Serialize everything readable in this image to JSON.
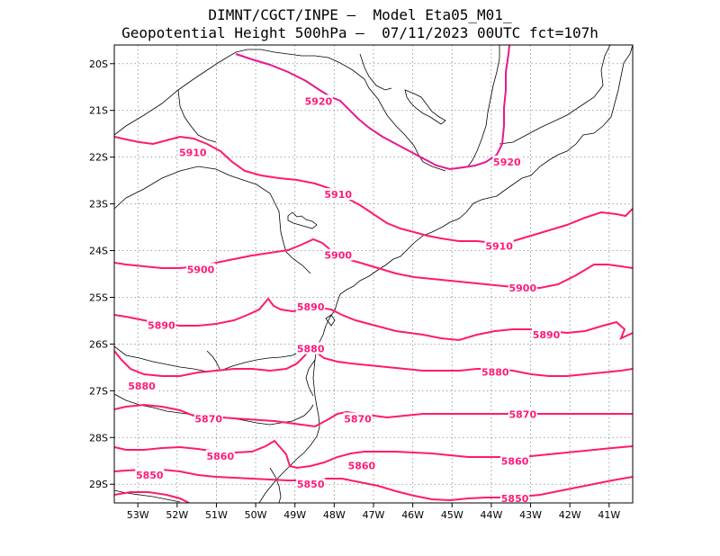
{
  "title_line1": "DIMNT/CGCT/INPE –  Model Eta05_M01_",
  "title_line2": "Geopotential Height 500hPa –  07/11/2023 00UTC fct=107h",
  "colors": {
    "contour": "#ff1a6e",
    "contour_alt": "#e8178f",
    "coast": "#000000",
    "grid": "#888888"
  },
  "axes": {
    "lat_labels": [
      "20S",
      "21S",
      "22S",
      "23S",
      "24S",
      "25S",
      "26S",
      "27S",
      "28S",
      "29S"
    ],
    "lat_values": [
      -20,
      -21,
      -22,
      -23,
      -24,
      -25,
      -26,
      -27,
      -28,
      -29
    ],
    "lon_labels": [
      "53W",
      "52W",
      "51W",
      "50W",
      "49W",
      "48W",
      "47W",
      "46W",
      "45W",
      "44W",
      "43W",
      "42W",
      "41W"
    ],
    "lon_values": [
      -53,
      -52,
      -51,
      -50,
      -49,
      -48,
      -47,
      -46,
      -45,
      -44,
      -43,
      -42,
      -41
    ],
    "lat_range": [
      -29.4,
      -19.6
    ],
    "lon_range": [
      -53.6,
      -40.4
    ]
  },
  "contour_labels": [
    {
      "text": "5920",
      "lon": -48.4,
      "lat": -20.8
    },
    {
      "text": "5920",
      "lon": -43.6,
      "lat": -22.1
    },
    {
      "text": "5910",
      "lon": -51.6,
      "lat": -21.9
    },
    {
      "text": "5910",
      "lon": -47.9,
      "lat": -22.8
    },
    {
      "text": "5910",
      "lon": -43.8,
      "lat": -23.9
    },
    {
      "text": "5900",
      "lon": -51.4,
      "lat": -24.4
    },
    {
      "text": "5900",
      "lon": -47.9,
      "lat": -24.1
    },
    {
      "text": "5900",
      "lon": -43.2,
      "lat": -24.8
    },
    {
      "text": "5890",
      "lon": -52.4,
      "lat": -25.6
    },
    {
      "text": "5890",
      "lon": -48.6,
      "lat": -25.2
    },
    {
      "text": "5890",
      "lon": -42.6,
      "lat": -25.8
    },
    {
      "text": "5880",
      "lon": -52.9,
      "lat": -26.9
    },
    {
      "text": "5880",
      "lon": -48.6,
      "lat": -26.1
    },
    {
      "text": "5880",
      "lon": -43.9,
      "lat": -26.6
    },
    {
      "text": "5870",
      "lon": -51.2,
      "lat": -27.6
    },
    {
      "text": "5870",
      "lon": -47.4,
      "lat": -27.6
    },
    {
      "text": "5870",
      "lon": -43.2,
      "lat": -27.5
    },
    {
      "text": "5860",
      "lon": -50.9,
      "lat": -28.4
    },
    {
      "text": "5860",
      "lon": -47.3,
      "lat": -28.6
    },
    {
      "text": "5860",
      "lon": -43.4,
      "lat": -28.5
    },
    {
      "text": "5850",
      "lon": -52.7,
      "lat": -28.8
    },
    {
      "text": "5850",
      "lon": -48.6,
      "lat": -29.0
    },
    {
      "text": "5850",
      "lon": -43.4,
      "lat": -29.3
    }
  ]
}
